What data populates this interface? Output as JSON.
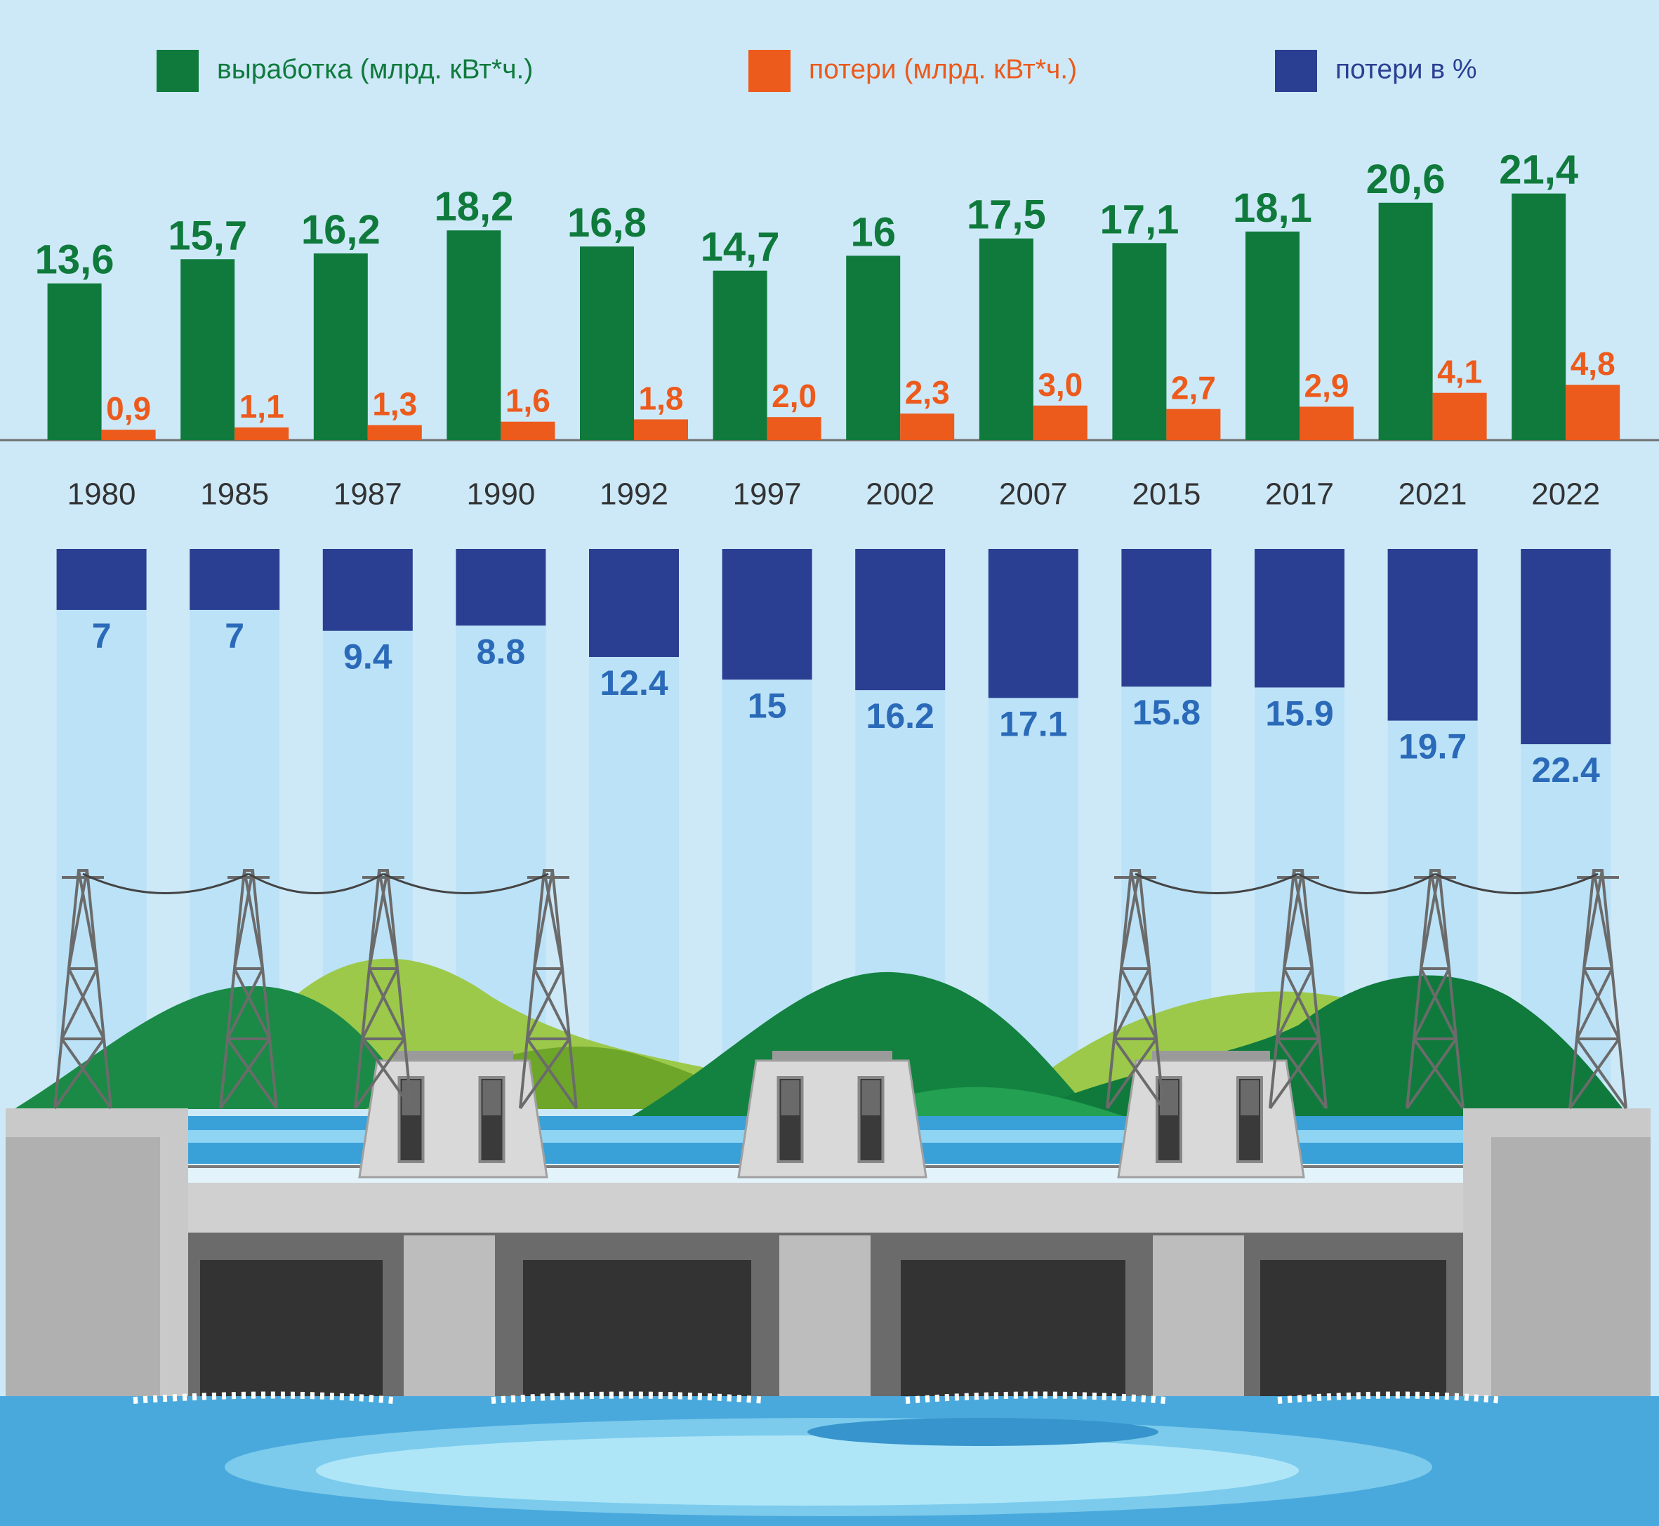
{
  "chart_data": {
    "type": "bar",
    "categories": [
      "1980",
      "1985",
      "1987",
      "1990",
      "1992",
      "1997",
      "2002",
      "2007",
      "2015",
      "2017",
      "2021",
      "2022"
    ],
    "series": [
      {
        "name": "выработка (млрд. кВт*ч.)",
        "color": "#0f7a3c",
        "values": [
          13.6,
          15.7,
          16.2,
          18.2,
          16.8,
          14.7,
          16,
          17.5,
          17.1,
          18.1,
          20.6,
          21.4
        ],
        "value_labels": [
          "13,6",
          "15,7",
          "16,2",
          "18,2",
          "16,8",
          "14,7",
          "16",
          "17,5",
          "17,1",
          "18,1",
          "20,6",
          "21,4"
        ]
      },
      {
        "name": "потери (млрд. кВт*ч.)",
        "color": "#ec5a1c",
        "values": [
          0.9,
          1.1,
          1.3,
          1.6,
          1.8,
          2.0,
          2.3,
          3.0,
          2.7,
          2.9,
          4.1,
          4.8
        ],
        "value_labels": [
          "0,9",
          "1,1",
          "1,3",
          "1,6",
          "1,8",
          "2,0",
          "2,3",
          "3,0",
          "2,7",
          "2,9",
          "4,1",
          "4,8"
        ]
      },
      {
        "name": "потери в %",
        "color": "#2b3f92",
        "axis": "y2",
        "values": [
          7,
          7,
          9.4,
          8.8,
          12.4,
          15,
          16.2,
          17.1,
          15.8,
          15.9,
          19.7,
          22.4
        ]
      }
    ],
    "ylim": [
      0,
      24
    ],
    "y2lim": [
      0,
      24
    ],
    "y2_reversed": true,
    "legend": "top"
  }
}
